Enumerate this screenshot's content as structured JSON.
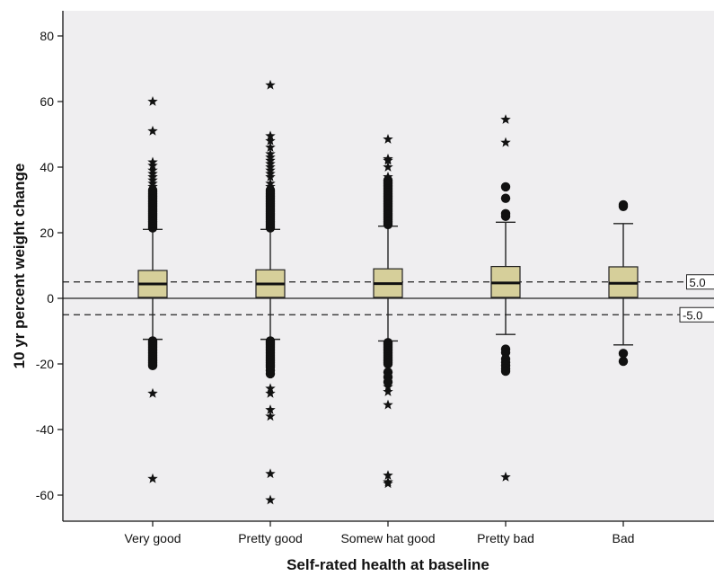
{
  "chart_data": {
    "type": "boxplot",
    "xlabel": "Self-rated health at baseline",
    "ylabel": "10 yr percent weight change",
    "ylim": [
      -70,
      85
    ],
    "y_ticks": [
      -60,
      -40,
      -20,
      0,
      20,
      40,
      60,
      80
    ],
    "y_tick_labels": [
      "-60",
      "-40",
      "-20",
      "0",
      "20",
      "40",
      "60",
      "80"
    ],
    "grid": false,
    "colors": {
      "plot_bg": "#efeef0",
      "box_fill": "#d6cf9a",
      "box_stroke": "#222222",
      "marks": "#111111"
    },
    "reference_lines": [
      {
        "value": 5,
        "label": "5.0",
        "style": "dashed"
      },
      {
        "value": 0,
        "label": "",
        "style": "solid"
      },
      {
        "value": -5,
        "label": "-5.0",
        "style": "dashed"
      }
    ],
    "categories": [
      {
        "name": "Very good",
        "whisker_low": -12.5,
        "q1": 0.3,
        "median": 4.4,
        "q3": 8.5,
        "whisker_high": 21,
        "outliers_circle": [
          21.5,
          22,
          22.5,
          23,
          23.5,
          24,
          24.5,
          25,
          25.5,
          26,
          26.5,
          27,
          27.5,
          28,
          28.5,
          29,
          29.5,
          30,
          30.5,
          31,
          31.5,
          32,
          32.5,
          33,
          -13,
          -13.5,
          -14,
          -14.5,
          -15,
          -15.5,
          -16,
          -16.5,
          -17,
          -17.5,
          -18,
          -18.5,
          -19,
          -19.5,
          -20,
          -20.5
        ],
        "outliers_star": [
          60,
          51,
          41.5,
          40.5,
          39,
          38,
          37,
          36,
          35,
          34,
          -29,
          -55
        ]
      },
      {
        "name": "Pretty good",
        "whisker_low": -12.5,
        "q1": 0.3,
        "median": 4.4,
        "q3": 8.7,
        "whisker_high": 21,
        "outliers_circle": [
          21.5,
          22,
          22.5,
          23,
          23.5,
          24,
          24.5,
          25,
          25.5,
          26,
          26.5,
          27,
          27.5,
          28,
          28.5,
          29,
          29.5,
          30,
          30.5,
          31,
          31.5,
          32,
          32.5,
          33,
          -13,
          -13.5,
          -14,
          -14.5,
          -15,
          -15.5,
          -16,
          -16.5,
          -17,
          -17.5,
          -18,
          -18.5,
          -19,
          -19.5,
          -20,
          -20.5,
          -21,
          -22,
          -23
        ],
        "outliers_star": [
          65,
          49.5,
          48,
          46,
          44,
          43,
          42,
          41,
          40,
          39,
          38,
          37,
          35,
          34,
          -27.5,
          -29,
          -34,
          -36,
          -53.5,
          -61.5
        ]
      },
      {
        "name": "Somew hat good",
        "whisker_low": -13,
        "q1": 0.3,
        "median": 4.5,
        "q3": 9,
        "whisker_high": 22,
        "outliers_circle": [
          22.5,
          23,
          23.5,
          24,
          24.5,
          25,
          25.5,
          26,
          26.5,
          27,
          27.5,
          28,
          28.5,
          29,
          29.5,
          30,
          30.5,
          31,
          31.5,
          32,
          32.5,
          33,
          33.5,
          34,
          34.5,
          35,
          35.5,
          36,
          -13.5,
          -14,
          -14.5,
          -15,
          -15.5,
          -16,
          -16.5,
          -17,
          -17.5,
          -18,
          -18.5,
          -19,
          -19.5,
          -20,
          -22.5,
          -24,
          -25.5
        ],
        "outliers_star": [
          48.5,
          42.5,
          42,
          40,
          37,
          -27,
          -28.5,
          -32.5,
          -54,
          -56,
          -56.5
        ]
      },
      {
        "name": "Pretty bad",
        "whisker_low": -11,
        "q1": 0.3,
        "median": 4.7,
        "q3": 9.7,
        "whisker_high": 23.2,
        "outliers_circle": [
          34,
          30.5,
          25.8,
          25,
          -15.5,
          -16.5,
          -18.5,
          -19.5,
          -20.5,
          -21.5,
          -22.2
        ],
        "outliers_star": [
          54.5,
          47.5,
          -54.5
        ]
      },
      {
        "name": "Bad",
        "whisker_low": -14.2,
        "q1": 0.3,
        "median": 4.6,
        "q3": 9.6,
        "whisker_high": 22.8,
        "outliers_circle": [
          28.5,
          28,
          -16.8,
          -19.2
        ],
        "outliers_star": []
      }
    ]
  }
}
